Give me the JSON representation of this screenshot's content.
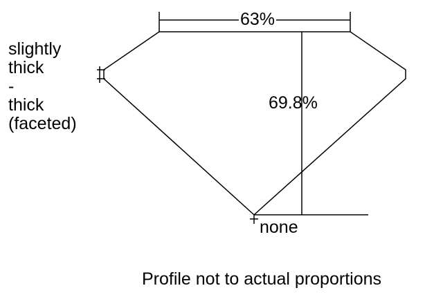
{
  "labels": {
    "table": "63%",
    "depth": "69.8%",
    "culet": "none",
    "girdle_lines": [
      "slightly",
      "thick",
      "-",
      "thick",
      "(faceted)"
    ],
    "caption": "Profile not to actual proportions"
  },
  "colors": {
    "line": "#000000",
    "background": "#ffffff"
  }
}
